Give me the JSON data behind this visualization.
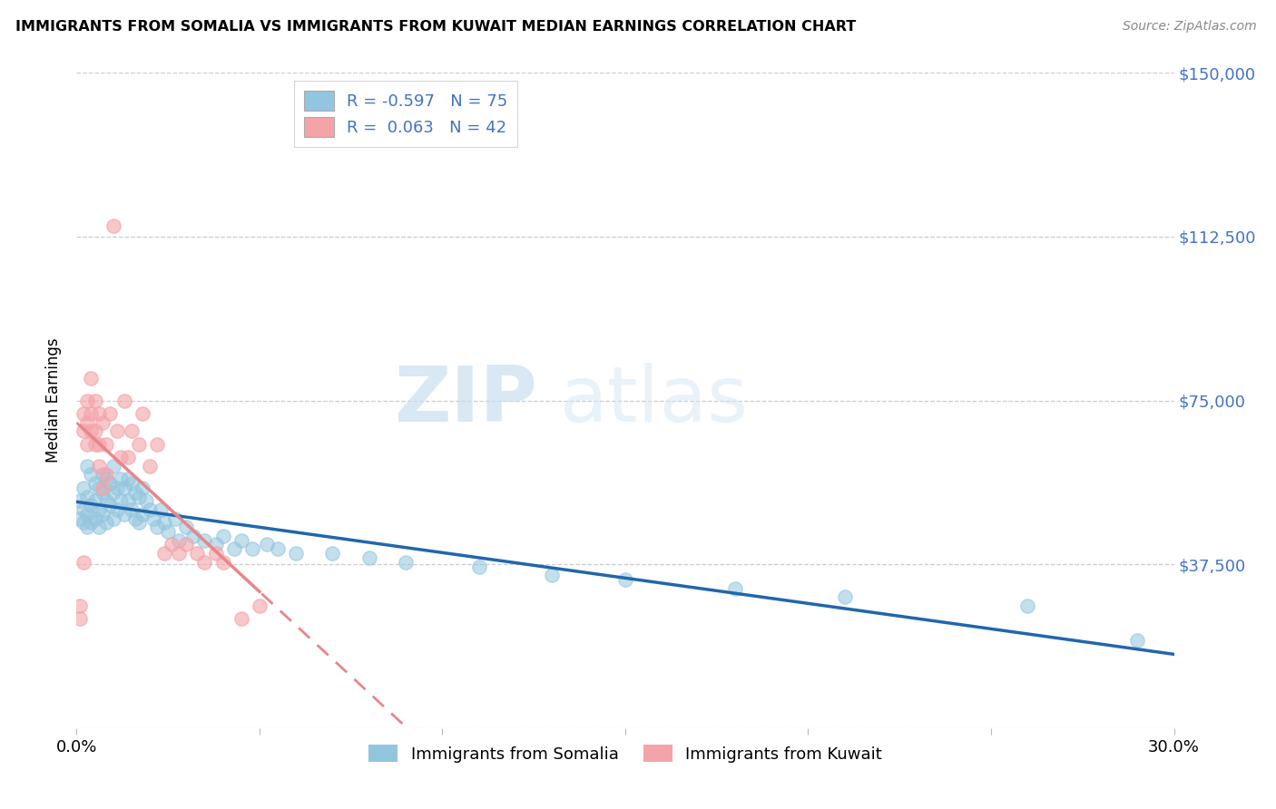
{
  "title": "IMMIGRANTS FROM SOMALIA VS IMMIGRANTS FROM KUWAIT MEDIAN EARNINGS CORRELATION CHART",
  "source": "Source: ZipAtlas.com",
  "ylabel": "Median Earnings",
  "xlim": [
    0.0,
    0.3
  ],
  "ylim": [
    0,
    150000
  ],
  "yticks": [
    0,
    37500,
    75000,
    112500,
    150000
  ],
  "ytick_labels": [
    "",
    "$37,500",
    "$75,000",
    "$112,500",
    "$150,000"
  ],
  "xticks": [
    0.0,
    0.05,
    0.1,
    0.15,
    0.2,
    0.25,
    0.3
  ],
  "xtick_labels": [
    "0.0%",
    "",
    "",
    "",
    "",
    "",
    "30.0%"
  ],
  "somalia_color": "#92c5de",
  "kuwait_color": "#f4a3a8",
  "somalia_line_color": "#2166ac",
  "kuwait_line_color": "#e8868a",
  "somalia_R": -0.597,
  "somalia_N": 75,
  "kuwait_R": 0.063,
  "kuwait_N": 42,
  "legend_label_somalia": "Immigrants from Somalia",
  "legend_label_kuwait": "Immigrants from Kuwait",
  "watermark_zip": "ZIP",
  "watermark_atlas": "atlas",
  "background_color": "#ffffff",
  "grid_color": "#cccccc",
  "axis_label_color": "#4472c4",
  "somalia_scatter_x": [
    0.001,
    0.001,
    0.002,
    0.002,
    0.002,
    0.003,
    0.003,
    0.003,
    0.003,
    0.004,
    0.004,
    0.004,
    0.005,
    0.005,
    0.005,
    0.006,
    0.006,
    0.006,
    0.007,
    0.007,
    0.007,
    0.008,
    0.008,
    0.008,
    0.009,
    0.009,
    0.01,
    0.01,
    0.01,
    0.011,
    0.011,
    0.012,
    0.012,
    0.013,
    0.013,
    0.014,
    0.014,
    0.015,
    0.015,
    0.016,
    0.016,
    0.017,
    0.017,
    0.018,
    0.018,
    0.019,
    0.02,
    0.021,
    0.022,
    0.023,
    0.024,
    0.025,
    0.027,
    0.028,
    0.03,
    0.032,
    0.035,
    0.038,
    0.04,
    0.043,
    0.045,
    0.048,
    0.052,
    0.055,
    0.06,
    0.07,
    0.08,
    0.09,
    0.11,
    0.13,
    0.15,
    0.18,
    0.21,
    0.26,
    0.29
  ],
  "somalia_scatter_y": [
    52000,
    48000,
    55000,
    50000,
    47000,
    60000,
    53000,
    49000,
    46000,
    58000,
    51000,
    47000,
    56000,
    52000,
    48000,
    55000,
    50000,
    46000,
    58000,
    54000,
    49000,
    57000,
    52000,
    47000,
    56000,
    51000,
    60000,
    54000,
    48000,
    55000,
    50000,
    57000,
    52000,
    55000,
    49000,
    57000,
    52000,
    56000,
    50000,
    54000,
    48000,
    53000,
    47000,
    55000,
    49000,
    52000,
    50000,
    48000,
    46000,
    50000,
    47000,
    45000,
    48000,
    43000,
    46000,
    44000,
    43000,
    42000,
    44000,
    41000,
    43000,
    41000,
    42000,
    41000,
    40000,
    40000,
    39000,
    38000,
    37000,
    35000,
    34000,
    32000,
    30000,
    28000,
    20000
  ],
  "kuwait_scatter_x": [
    0.001,
    0.001,
    0.002,
    0.002,
    0.002,
    0.003,
    0.003,
    0.003,
    0.004,
    0.004,
    0.004,
    0.005,
    0.005,
    0.005,
    0.006,
    0.006,
    0.006,
    0.007,
    0.007,
    0.008,
    0.008,
    0.009,
    0.01,
    0.011,
    0.012,
    0.013,
    0.014,
    0.015,
    0.017,
    0.018,
    0.02,
    0.022,
    0.024,
    0.026,
    0.028,
    0.03,
    0.033,
    0.035,
    0.038,
    0.04,
    0.045,
    0.05
  ],
  "kuwait_scatter_y": [
    28000,
    25000,
    38000,
    68000,
    72000,
    65000,
    75000,
    70000,
    68000,
    80000,
    72000,
    65000,
    75000,
    68000,
    72000,
    65000,
    60000,
    70000,
    55000,
    65000,
    58000,
    72000,
    115000,
    68000,
    62000,
    75000,
    62000,
    68000,
    65000,
    72000,
    60000,
    65000,
    40000,
    42000,
    40000,
    42000,
    40000,
    38000,
    40000,
    38000,
    25000,
    28000
  ],
  "legend_R_somalia": "R = -0.597",
  "legend_N_somalia": "N = 75",
  "legend_R_kuwait": "R =  0.063",
  "legend_N_kuwait": "N = 42"
}
